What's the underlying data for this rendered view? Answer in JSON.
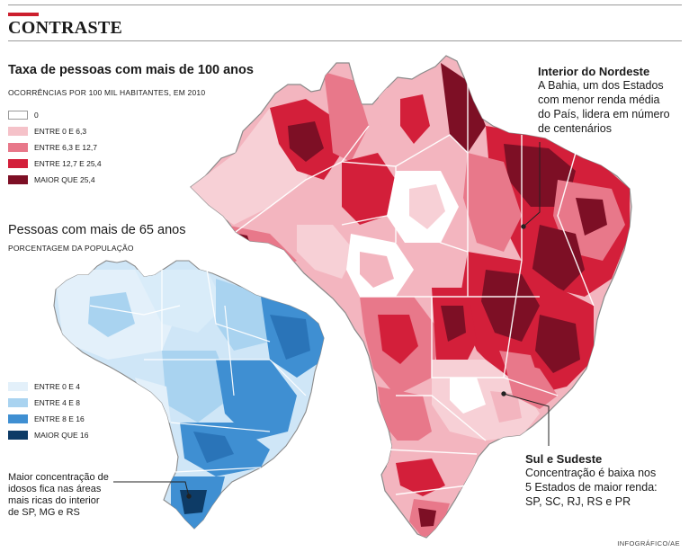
{
  "section_title": "CONTRASTE",
  "map1": {
    "title": "Taxa de pessoas com mais de 100 anos",
    "subtitle": "OCORRÊNCIAS POR 100 MIL HABITANTES, EM 2010",
    "legend": [
      {
        "label": "0",
        "color": "#ffffff"
      },
      {
        "label": "ENTRE 0 E 6,3",
        "color": "#f5c2c9"
      },
      {
        "label": "ENTRE 6,3 E 12,7",
        "color": "#e8788a"
      },
      {
        "label": "ENTRE 12,7 E 25,4",
        "color": "#d31f3a"
      },
      {
        "label": "MAIOR QUE 25,4",
        "color": "#7d0f25"
      }
    ]
  },
  "map2": {
    "title": "Pessoas com mais de 65 anos",
    "subtitle": "PORCENTAGEM DA POPULAÇÃO",
    "legend": [
      {
        "label": "ENTRE 0 E 4",
        "color": "#e3f0fa"
      },
      {
        "label": "ENTRE 4 E 8",
        "color": "#a9d3f0"
      },
      {
        "label": "ENTRE 8 E 16",
        "color": "#3f8fd2"
      },
      {
        "label": "MAIOR QUE 16",
        "color": "#0d3b66"
      }
    ],
    "note": [
      "Maior concentração de",
      "idosos fica nas áreas",
      "mais ricas do interior",
      "de SP, MG e RS"
    ]
  },
  "annotation_nordeste": {
    "title": "Interior do Nordeste",
    "lines": [
      "A Bahia, um dos Estados",
      "com menor renda média",
      "do País, lidera em número",
      "de centenários"
    ]
  },
  "annotation_sul": {
    "title": "Sul e Sudeste",
    "lines": [
      "Concentração é baixa nos",
      "5 Estados de maior renda:",
      "SP, SC, RJ, RS e PR"
    ]
  },
  "credit": "INFOGRÁFICO/AE"
}
